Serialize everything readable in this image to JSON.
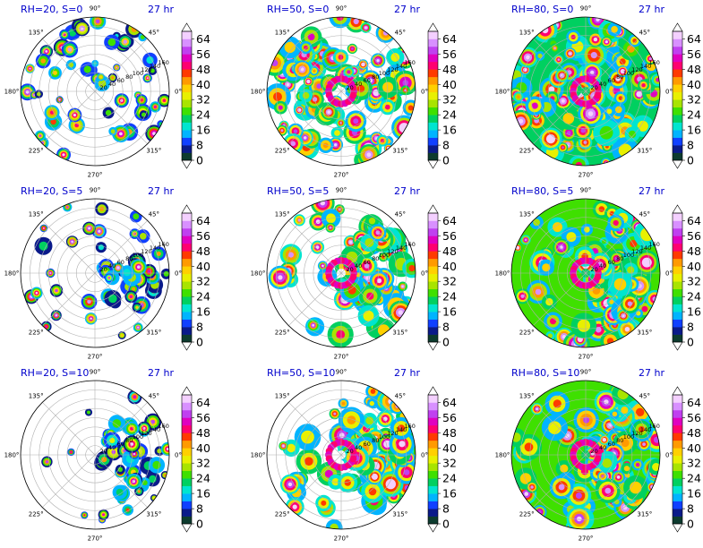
{
  "chart_data": {
    "type": "heatmap",
    "projection": "polar",
    "colorbar": {
      "levels": [
        0,
        4,
        8,
        12,
        16,
        20,
        24,
        28,
        32,
        36,
        40,
        44,
        48,
        52,
        56,
        60,
        64,
        68
      ],
      "tick_labels": [
        "0",
        "8",
        "16",
        "24",
        "32",
        "40",
        "48",
        "56",
        "64"
      ],
      "colors": [
        "#0d3b2e",
        "#0a1a8a",
        "#1040ff",
        "#00b4ff",
        "#00e5d0",
        "#00d060",
        "#3fe000",
        "#a8e400",
        "#e8f000",
        "#ffd000",
        "#ff9a00",
        "#ff3a00",
        "#ff0070",
        "#e000c0",
        "#c040f0",
        "#d890ff",
        "#f4d0ff"
      ],
      "extend": "both"
    },
    "angle_ticks": [
      "90°",
      "45°",
      "0°",
      "315°",
      "270°",
      "225°",
      "180°",
      "135°"
    ],
    "radial_ticks": [
      "20",
      "40",
      "60",
      "80",
      "100",
      "120",
      "140",
      "160"
    ],
    "rmax": 160,
    "panels": [
      {
        "title": "RH=20, S=0",
        "time": "27 hr",
        "rh": 20,
        "shear": 0
      },
      {
        "title": "RH=50, S=0",
        "time": "27 hr",
        "rh": 50,
        "shear": 0
      },
      {
        "title": "RH=80, S=0",
        "time": "27 hr",
        "rh": 80,
        "shear": 0
      },
      {
        "title": "RH=20, S=5",
        "time": "27 hr",
        "rh": 20,
        "shear": 5
      },
      {
        "title": "RH=50, S=5",
        "time": "27 hr",
        "rh": 50,
        "shear": 5
      },
      {
        "title": "RH=80, S=5",
        "time": "27 hr",
        "rh": 80,
        "shear": 5
      },
      {
        "title": "RH=20, S=10",
        "time": "27 hr",
        "rh": 20,
        "shear": 10
      },
      {
        "title": "RH=50, S=10",
        "time": "27 hr",
        "rh": 50,
        "shear": 10
      },
      {
        "title": "RH=80, S=10",
        "time": "27 hr",
        "rh": 80,
        "shear": 10
      }
    ]
  }
}
